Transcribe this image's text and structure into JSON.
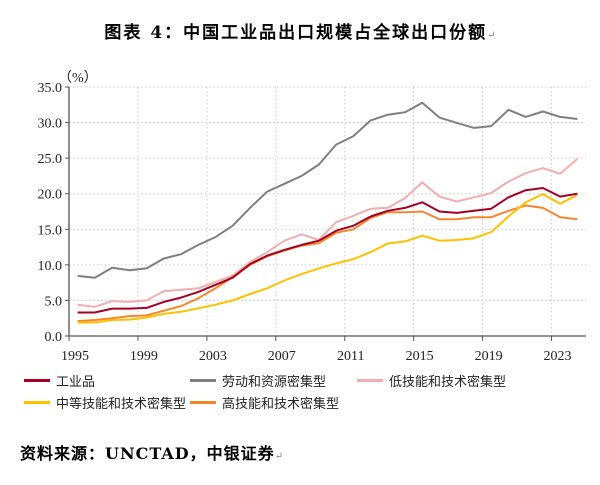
{
  "chart_data": {
    "type": "line",
    "title": "图表 4：中国工业品出口规模占全球出口份额",
    "ylabel": "（%）",
    "xlabel": "",
    "ylim": [
      0,
      35
    ],
    "yticks": [
      "0.0",
      "5.0",
      "10.0",
      "15.0",
      "20.0",
      "25.0",
      "30.0",
      "35.0"
    ],
    "xtick_labels": [
      "1995",
      "1999",
      "2003",
      "2007",
      "2011",
      "2015",
      "2019",
      "2023"
    ],
    "grid": true,
    "legend_position": "bottom",
    "x": [
      1995,
      1996,
      1997,
      1998,
      1999,
      2000,
      2001,
      2002,
      2003,
      2004,
      2005,
      2006,
      2007,
      2008,
      2009,
      2010,
      2011,
      2012,
      2013,
      2014,
      2015,
      2016,
      2017,
      2018,
      2019,
      2020,
      2021,
      2022,
      2023,
      2024
    ],
    "series": [
      {
        "name": "工业品",
        "color": "#A50021",
        "values": [
          3.3,
          3.3,
          3.85,
          3.85,
          3.95,
          4.8,
          5.4,
          6.2,
          7.2,
          8.2,
          10.1,
          11.3,
          12.1,
          12.8,
          13.4,
          14.8,
          15.5,
          16.8,
          17.6,
          18.0,
          18.8,
          17.5,
          17.3,
          17.6,
          17.9,
          19.5,
          20.5,
          20.8,
          19.6,
          20.0
        ]
      },
      {
        "name": "劳动和资源密集型",
        "color": "#7F7F7F",
        "values": [
          8.45,
          8.2,
          9.6,
          9.25,
          9.5,
          10.9,
          11.5,
          12.8,
          13.9,
          15.5,
          18.0,
          20.3,
          21.4,
          22.5,
          24.1,
          26.9,
          28.1,
          30.3,
          31.1,
          31.45,
          32.8,
          30.7,
          29.95,
          29.25,
          29.5,
          31.8,
          30.8,
          31.55,
          30.8,
          30.5
        ]
      },
      {
        "name": "低技能和技术密集型",
        "color": "#F2AEAE",
        "values": [
          4.4,
          4.1,
          4.9,
          4.8,
          5.0,
          6.3,
          6.5,
          6.7,
          7.6,
          8.5,
          10.4,
          11.8,
          13.4,
          14.3,
          13.5,
          16.0,
          16.9,
          17.9,
          18.0,
          19.4,
          21.6,
          19.6,
          18.9,
          19.5,
          20.1,
          21.7,
          22.9,
          23.6,
          22.8,
          24.9
        ]
      },
      {
        "name": "中等技能和技术密集型",
        "color": "#FFC000",
        "values": [
          1.9,
          1.9,
          2.25,
          2.3,
          2.6,
          3.1,
          3.4,
          3.9,
          4.4,
          5.0,
          5.9,
          6.7,
          7.8,
          8.7,
          9.5,
          10.2,
          10.8,
          11.8,
          13.0,
          13.3,
          14.1,
          13.4,
          13.5,
          13.75,
          14.6,
          16.8,
          18.8,
          19.95,
          18.6,
          19.85
        ]
      },
      {
        "name": "高技能和技术密集型",
        "color": "#F5862E",
        "values": [
          2.1,
          2.25,
          2.5,
          2.8,
          2.9,
          3.55,
          4.2,
          5.3,
          6.7,
          8.3,
          10.0,
          11.2,
          12.0,
          12.7,
          13.05,
          14.5,
          15.0,
          16.6,
          17.4,
          17.4,
          17.5,
          16.4,
          16.4,
          16.7,
          16.7,
          17.6,
          18.35,
          18.0,
          16.7,
          16.4
        ]
      }
    ]
  },
  "source": {
    "text": "资料来源：UNCTAD，中银证券",
    "mark": "↵"
  },
  "title_mark": "↵"
}
